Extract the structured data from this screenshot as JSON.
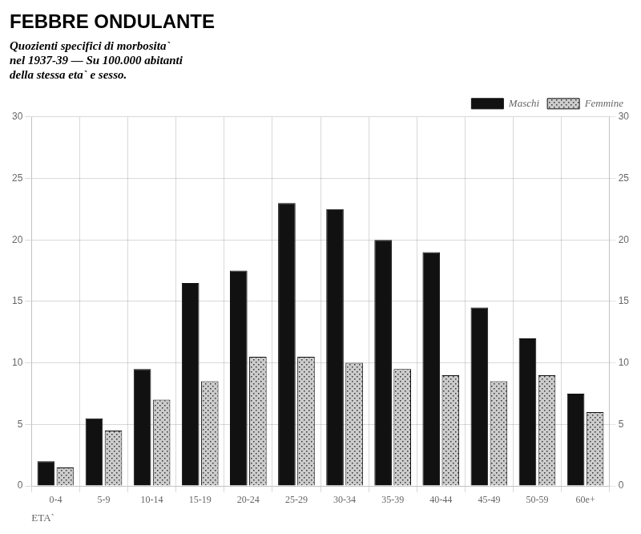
{
  "chart_data": {
    "type": "bar",
    "title": "FEBBRE ONDULANTE",
    "subtitle": [
      "Quozienti specifici di morbosita`",
      "nel 1937-39 — Su 100.000 abitanti",
      "della stessa eta` e sesso."
    ],
    "xlabel": "ETA`",
    "categories": [
      "0-4",
      "5-9",
      "10-14",
      "15-19",
      "20-24",
      "25-29",
      "30-34",
      "35-39",
      "40-44",
      "45-49",
      "50-59",
      "60e+"
    ],
    "series": [
      {
        "name": "Maschi",
        "color": "#111111",
        "values": [
          2.0,
          5.5,
          9.5,
          16.5,
          17.5,
          23.0,
          22.5,
          20.0,
          19.0,
          14.5,
          12.0,
          7.5
        ]
      },
      {
        "name": "Femmine",
        "color": "#cccccc",
        "values": [
          1.5,
          4.5,
          7.0,
          8.5,
          10.5,
          10.5,
          10.0,
          9.5,
          9.0,
          8.5,
          9.0,
          6.0
        ]
      }
    ],
    "ylim": [
      0,
      30
    ],
    "yticks": [
      0,
      5,
      10,
      15,
      20,
      25,
      30
    ],
    "y2lim": [
      0,
      30
    ],
    "y2ticks": [
      0,
      5,
      10,
      15,
      20,
      25,
      30
    ],
    "grid": true,
    "legend": "upper right"
  }
}
